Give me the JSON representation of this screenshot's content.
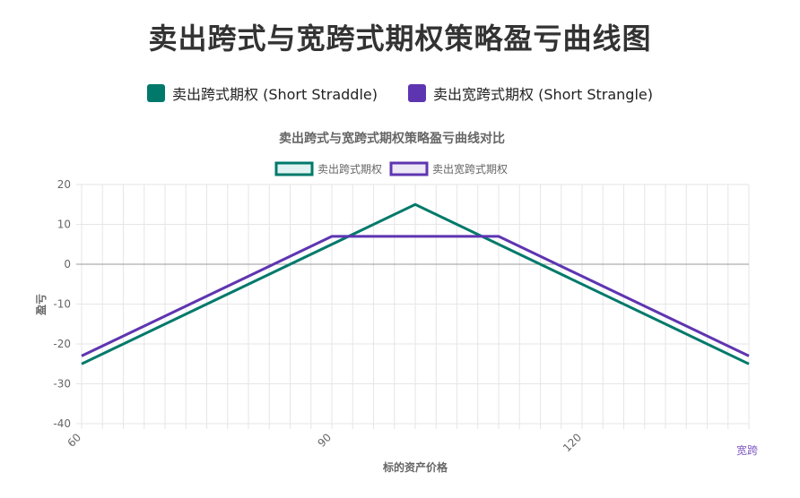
{
  "page": {
    "title": "卖出跨式与宽跨式期权策略盈亏曲线图",
    "legend": [
      {
        "label": "卖出跨式期权 (Short Straddle)",
        "color": "#00796b"
      },
      {
        "label": "卖出宽跨式期权 (Short Strangle)",
        "color": "#5e35b1"
      }
    ]
  },
  "chart_data": {
    "type": "line",
    "title": "卖出跨式与宽跨式期权策略盈亏曲线对比",
    "xlabel": "标的资产价格",
    "ylabel": "盈亏",
    "xlim": [
      60,
      140
    ],
    "ylim": [
      -40,
      20
    ],
    "y_ticks": [
      20,
      10,
      0,
      -10,
      -20,
      -30,
      -40
    ],
    "x_ticks": [
      60,
      90,
      120
    ],
    "x_tick_labels": [
      "60",
      "90",
      "120"
    ],
    "grid": true,
    "legend_position": "top",
    "overflow_label": "宽跨",
    "series": [
      {
        "name": "卖出跨式期权",
        "color": "#00796b",
        "fill": "#e0f2f1",
        "x": [
          60,
          100,
          140
        ],
        "y": [
          -25,
          15,
          -25
        ]
      },
      {
        "name": "卖出宽跨式期权",
        "color": "#5e35b1",
        "fill": "#ede7f6",
        "x": [
          60,
          90,
          110,
          140
        ],
        "y": [
          -23,
          7,
          7,
          -23
        ]
      }
    ]
  }
}
